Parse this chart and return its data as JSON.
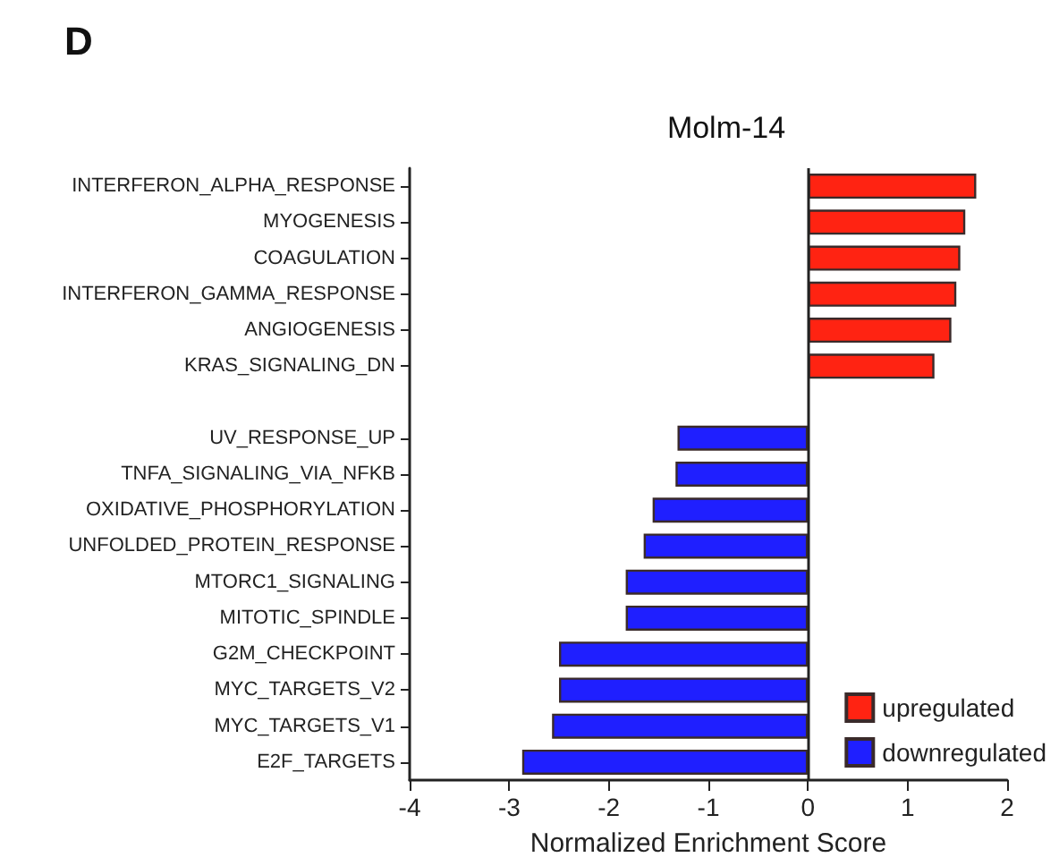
{
  "chart_data": {
    "type": "bar",
    "orientation": "horizontal",
    "title": "Molm-14",
    "xlabel": "Normalized Enrichment Score",
    "annotations": [
      "D"
    ],
    "categories": [
      "INTERFERON_ALPHA_RESPONSE",
      "MYOGENESIS",
      "COAGULATION",
      "INTERFERON_GAMMA_RESPONSE",
      "ANGIOGENESIS",
      "KRAS_SIGNALING_DN",
      null,
      "UV_RESPONSE_UP",
      "TNFA_SIGNALING_VIA_NFKB",
      "OXIDATIVE_PHOSPHORYLATION",
      "UNFOLDED_PROTEIN_RESPONSE",
      "MTORC1_SIGNALING",
      "MITOTIC_SPINDLE",
      "G2M_CHECKPOINT",
      "MYC_TARGETS_V2",
      "MYC_TARGETS_V1",
      "E2F_TARGETS"
    ],
    "series": [
      {
        "name": "upregulated",
        "color": "#ff2312",
        "values": [
          1.69,
          1.58,
          1.53,
          1.49,
          1.44,
          1.27,
          null,
          null,
          null,
          null,
          null,
          null,
          null,
          null,
          null,
          null,
          null
        ]
      },
      {
        "name": "downregulated",
        "color": "#1f1fff",
        "values": [
          null,
          null,
          null,
          null,
          null,
          null,
          null,
          -1.31,
          -1.33,
          -1.56,
          -1.65,
          -1.83,
          -1.83,
          -2.5,
          -2.5,
          -2.57,
          -2.87
        ]
      }
    ],
    "xlim": [
      -4,
      2
    ],
    "xticks": [
      -4,
      -3,
      -2,
      -1,
      0,
      1,
      2
    ],
    "ref_lines": [
      {
        "axis": "x",
        "value": 0,
        "color": "#222222"
      }
    ],
    "grid": false,
    "legend": "bottom right"
  }
}
